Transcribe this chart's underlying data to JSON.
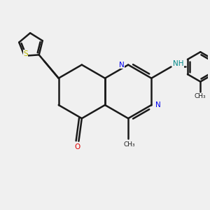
{
  "bg_color": "#f0f0f0",
  "bond_color": "#1a1a1a",
  "bond_width": 1.8,
  "N_color": "#0000ee",
  "O_color": "#dd0000",
  "S_color": "#bbbb00",
  "NH_color": "#008888",
  "figsize": [
    3.0,
    3.0
  ],
  "dpi": 100,
  "xlim": [
    0,
    10
  ],
  "ylim": [
    0,
    10
  ]
}
